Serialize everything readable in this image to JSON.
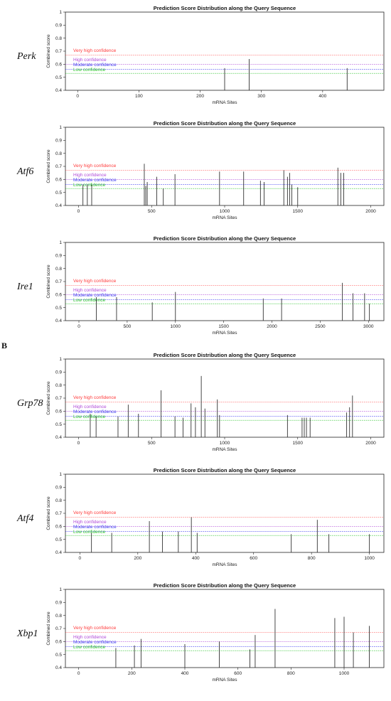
{
  "section_label": "B",
  "threshold_lines": [
    {
      "label": "Very high confidence",
      "value": 0.67,
      "color": "#ff3b3b"
    },
    {
      "label": "High confidence",
      "value": 0.6,
      "color": "#b04ad8"
    },
    {
      "label": "Moderate confidence",
      "value": 0.56,
      "color": "#3a3af0"
    },
    {
      "label": "Low confidence",
      "value": 0.53,
      "color": "#27c227"
    }
  ],
  "chart_data": [
    {
      "type": "bar",
      "gene": "Perk",
      "title": "Prediction Score Distribution along the Query Sequence",
      "xlabel": "mRNA Sites",
      "ylabel": "Combined score",
      "xlim": [
        -20,
        500
      ],
      "xticks": [
        0,
        100,
        200,
        300,
        400
      ],
      "ylim": [
        0.4,
        1.0
      ],
      "yticks": [
        "0.4",
        "0.5",
        "0.6",
        "0.7",
        "0.8",
        "0.9",
        "1"
      ],
      "x": [
        240,
        280,
        440
      ],
      "y": [
        0.57,
        0.64,
        0.57
      ]
    },
    {
      "type": "bar",
      "gene": "Atf6",
      "title": "Prediction Score Distribution along the Query Sequence",
      "xlabel": "mRNA Sites",
      "ylabel": "Combined score",
      "xlim": [
        -90,
        2090
      ],
      "xticks": [
        0,
        500,
        1000,
        1500,
        2000
      ],
      "ylim": [
        0.4,
        1.0
      ],
      "yticks": [
        "0.4",
        "0.5",
        "0.6",
        "0.7",
        "0.8",
        "0.9",
        "1"
      ],
      "x": [
        30,
        60,
        90,
        450,
        460,
        470,
        535,
        580,
        660,
        965,
        1130,
        1245,
        1270,
        1405,
        1430,
        1445,
        1460,
        1500,
        1775,
        1795,
        1815
      ],
      "y": [
        0.56,
        0.56,
        0.56,
        0.72,
        0.55,
        0.58,
        0.62,
        0.53,
        0.64,
        0.66,
        0.66,
        0.59,
        0.58,
        0.67,
        0.62,
        0.65,
        0.56,
        0.54,
        0.69,
        0.65,
        0.65
      ]
    },
    {
      "type": "bar",
      "gene": "Ire1",
      "title": "Prediction Score Distribution along the Query Sequence",
      "xlabel": "mRNA Sites",
      "ylabel": "Combined score",
      "xlim": [
        -140,
        3160
      ],
      "xticks": [
        0,
        500,
        1000,
        1500,
        2000,
        2500,
        3000
      ],
      "ylim": [
        0.4,
        1.0
      ],
      "yticks": [
        "0.4",
        "0.5",
        "0.6",
        "0.7",
        "0.8",
        "0.9",
        "1"
      ],
      "x": [
        180,
        390,
        760,
        1000,
        1910,
        2100,
        2730,
        2840,
        2960,
        3010
      ],
      "y": [
        0.58,
        0.58,
        0.54,
        0.62,
        0.57,
        0.57,
        0.69,
        0.61,
        0.61,
        0.53
      ]
    },
    {
      "type": "bar",
      "gene": "Grp78",
      "title": "Prediction Score Distribution along the Query Sequence",
      "xlabel": "mRNA Sites",
      "ylabel": "Combined score",
      "xlim": [
        -90,
        2090
      ],
      "xticks": [
        0,
        500,
        1000,
        1500,
        2000
      ],
      "ylim": [
        0.4,
        1.0
      ],
      "yticks": [
        "0.4",
        "0.5",
        "0.6",
        "0.7",
        "0.8",
        "0.9",
        "1"
      ],
      "x": [
        80,
        120,
        270,
        340,
        410,
        565,
        660,
        715,
        770,
        800,
        840,
        865,
        950,
        965,
        1430,
        1530,
        1545,
        1560,
        1585,
        1835,
        1855,
        1875
      ],
      "y": [
        0.58,
        0.56,
        0.56,
        0.65,
        0.58,
        0.76,
        0.56,
        0.55,
        0.66,
        0.63,
        0.87,
        0.62,
        0.69,
        0.57,
        0.57,
        0.55,
        0.55,
        0.55,
        0.55,
        0.59,
        0.63,
        0.72
      ]
    },
    {
      "type": "bar",
      "gene": "Atf4",
      "title": "Prediction Score Distribution along the Query Sequence",
      "xlabel": "mRNA Sites",
      "ylabel": "Combined score",
      "xlim": [
        -50,
        1050
      ],
      "xticks": [
        0,
        200,
        400,
        600,
        800,
        1000
      ],
      "ylim": [
        0.4,
        1.0
      ],
      "yticks": [
        "0.4",
        "0.5",
        "0.6",
        "0.7",
        "0.8",
        "0.9",
        "1"
      ],
      "x": [
        40,
        110,
        240,
        285,
        340,
        385,
        405,
        730,
        820,
        860,
        1000
      ],
      "y": [
        0.55,
        0.55,
        0.64,
        0.56,
        0.56,
        0.67,
        0.55,
        0.54,
        0.65,
        0.54,
        0.54
      ]
    },
    {
      "type": "bar",
      "gene": "Xbp1",
      "title": "Prediction Score Distribution along the Query Sequence",
      "xlabel": "mRNA Sites",
      "ylabel": "Combined score",
      "xlim": [
        -50,
        1150
      ],
      "xticks": [
        0,
        200,
        400,
        600,
        800,
        1000
      ],
      "ylim": [
        0.4,
        1.0
      ],
      "yticks": [
        "0.4",
        "0.5",
        "0.6",
        "0.7",
        "0.8",
        "0.9",
        "1"
      ],
      "x": [
        140,
        210,
        235,
        400,
        530,
        645,
        665,
        740,
        965,
        1000,
        1035,
        1095
      ],
      "y": [
        0.55,
        0.57,
        0.62,
        0.58,
        0.6,
        0.54,
        0.65,
        0.85,
        0.78,
        0.79,
        0.67,
        0.72
      ]
    }
  ]
}
